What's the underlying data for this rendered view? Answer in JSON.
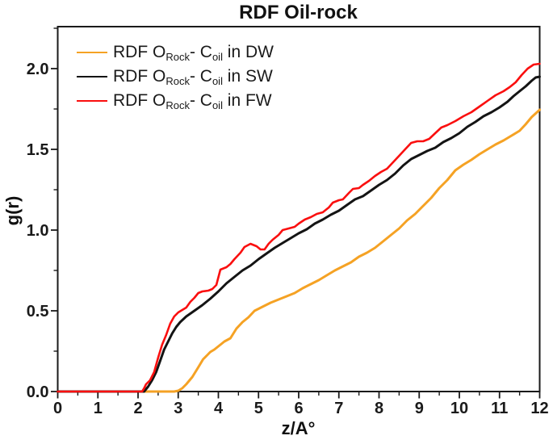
{
  "title": "RDF Oil-rock",
  "legend": {
    "items": [
      {
        "series_id": "dw",
        "pre": "RDF O",
        "sub1": "Rock",
        "mid": "- C",
        "sub2": "oil",
        "post": " in DW"
      },
      {
        "series_id": "sw",
        "pre": "RDF O",
        "sub1": "Rock",
        "mid": "- C",
        "sub2": "oil",
        "post": " in SW"
      },
      {
        "series_id": "fw",
        "pre": "RDF O",
        "sub1": "Rock",
        "mid": "- C",
        "sub2": "oil",
        "post": " in FW"
      }
    ]
  },
  "chart_data": {
    "type": "line",
    "title": "RDF Oil-rock",
    "xlabel": "z/A°",
    "ylabel": "g(r)",
    "xlim": [
      0,
      12
    ],
    "ylim": [
      0,
      2.26
    ],
    "grid": false,
    "legend_position": "top-left",
    "axis_color": "#1a1a1a",
    "x_major_ticks": [
      0,
      1,
      2,
      3,
      4,
      5,
      6,
      7,
      8,
      9,
      10,
      11,
      12
    ],
    "x_tick_labels": [
      "0",
      "1",
      "2",
      "3",
      "4",
      "5",
      "6",
      "7",
      "8",
      "9",
      "10",
      "11",
      "12"
    ],
    "x_minor_step": 0.5,
    "y_major_ticks": [
      0,
      0.5,
      1,
      1.5,
      2
    ],
    "y_tick_labels": [
      "0.0",
      "0.5",
      "1.0",
      "1.5",
      "2.0"
    ],
    "y_minor_step": 0.25,
    "series": [
      {
        "id": "dw",
        "name": "RDF O_Rock - C_oil in DW",
        "color": "#F5A224",
        "width": 3,
        "points": [
          [
            0,
            0
          ],
          [
            0.5,
            0
          ],
          [
            1,
            0
          ],
          [
            1.5,
            0
          ],
          [
            2,
            0
          ],
          [
            2.5,
            0
          ],
          [
            2.9,
            0
          ],
          [
            3.0,
            0.005
          ],
          [
            3.1,
            0.02
          ],
          [
            3.2,
            0.045
          ],
          [
            3.35,
            0.09
          ],
          [
            3.5,
            0.15
          ],
          [
            3.62,
            0.2
          ],
          [
            3.72,
            0.225
          ],
          [
            3.8,
            0.245
          ],
          [
            3.9,
            0.26
          ],
          [
            4.0,
            0.28
          ],
          [
            4.15,
            0.31
          ],
          [
            4.3,
            0.33
          ],
          [
            4.45,
            0.39
          ],
          [
            4.6,
            0.43
          ],
          [
            4.75,
            0.46
          ],
          [
            4.9,
            0.5
          ],
          [
            5.1,
            0.525
          ],
          [
            5.3,
            0.55
          ],
          [
            5.5,
            0.57
          ],
          [
            5.7,
            0.59
          ],
          [
            5.9,
            0.61
          ],
          [
            6.1,
            0.64
          ],
          [
            6.3,
            0.665
          ],
          [
            6.5,
            0.69
          ],
          [
            6.7,
            0.72
          ],
          [
            6.9,
            0.75
          ],
          [
            7.1,
            0.775
          ],
          [
            7.3,
            0.8
          ],
          [
            7.5,
            0.835
          ],
          [
            7.7,
            0.86
          ],
          [
            7.9,
            0.89
          ],
          [
            8.1,
            0.93
          ],
          [
            8.3,
            0.97
          ],
          [
            8.5,
            1.01
          ],
          [
            8.7,
            1.06
          ],
          [
            8.9,
            1.1
          ],
          [
            9.1,
            1.15
          ],
          [
            9.3,
            1.2
          ],
          [
            9.5,
            1.26
          ],
          [
            9.7,
            1.31
          ],
          [
            9.9,
            1.37
          ],
          [
            10.1,
            1.405
          ],
          [
            10.3,
            1.435
          ],
          [
            10.5,
            1.47
          ],
          [
            10.7,
            1.5
          ],
          [
            10.9,
            1.53
          ],
          [
            11.1,
            1.555
          ],
          [
            11.3,
            1.585
          ],
          [
            11.5,
            1.615
          ],
          [
            11.65,
            1.655
          ],
          [
            11.8,
            1.7
          ],
          [
            12,
            1.745
          ]
        ]
      },
      {
        "id": "sw",
        "name": "RDF O_Rock - C_oil in SW",
        "color": "#141414",
        "width": 3,
        "points": [
          [
            0,
            0
          ],
          [
            0.5,
            0
          ],
          [
            1,
            0
          ],
          [
            1.5,
            0
          ],
          [
            2,
            0
          ],
          [
            2.15,
            0
          ],
          [
            2.25,
            0.03
          ],
          [
            2.35,
            0.07
          ],
          [
            2.45,
            0.12
          ],
          [
            2.55,
            0.19
          ],
          [
            2.65,
            0.26
          ],
          [
            2.75,
            0.31
          ],
          [
            2.85,
            0.36
          ],
          [
            2.95,
            0.4
          ],
          [
            3.05,
            0.43
          ],
          [
            3.2,
            0.465
          ],
          [
            3.4,
            0.5
          ],
          [
            3.6,
            0.535
          ],
          [
            3.8,
            0.575
          ],
          [
            4.0,
            0.62
          ],
          [
            4.2,
            0.67
          ],
          [
            4.4,
            0.71
          ],
          [
            4.6,
            0.75
          ],
          [
            4.8,
            0.78
          ],
          [
            5.0,
            0.82
          ],
          [
            5.2,
            0.855
          ],
          [
            5.4,
            0.89
          ],
          [
            5.6,
            0.92
          ],
          [
            5.8,
            0.95
          ],
          [
            6.0,
            0.98
          ],
          [
            6.2,
            1.005
          ],
          [
            6.4,
            1.04
          ],
          [
            6.6,
            1.065
          ],
          [
            6.8,
            1.095
          ],
          [
            7.0,
            1.12
          ],
          [
            7.2,
            1.155
          ],
          [
            7.4,
            1.19
          ],
          [
            7.6,
            1.21
          ],
          [
            7.8,
            1.245
          ],
          [
            8.0,
            1.28
          ],
          [
            8.2,
            1.31
          ],
          [
            8.4,
            1.35
          ],
          [
            8.6,
            1.4
          ],
          [
            8.8,
            1.44
          ],
          [
            9.0,
            1.465
          ],
          [
            9.2,
            1.49
          ],
          [
            9.4,
            1.51
          ],
          [
            9.6,
            1.545
          ],
          [
            9.8,
            1.57
          ],
          [
            10.0,
            1.6
          ],
          [
            10.2,
            1.64
          ],
          [
            10.4,
            1.67
          ],
          [
            10.6,
            1.705
          ],
          [
            10.8,
            1.73
          ],
          [
            11.0,
            1.76
          ],
          [
            11.2,
            1.795
          ],
          [
            11.35,
            1.83
          ],
          [
            11.5,
            1.86
          ],
          [
            11.65,
            1.89
          ],
          [
            11.8,
            1.925
          ],
          [
            11.9,
            1.945
          ],
          [
            12,
            1.95
          ]
        ]
      },
      {
        "id": "fw",
        "name": "RDF O_Rock - C_oil in FW",
        "color": "#FA0F0F",
        "width": 2.6,
        "points": [
          [
            0,
            0
          ],
          [
            0.5,
            0
          ],
          [
            1,
            0
          ],
          [
            1.5,
            0
          ],
          [
            2,
            0
          ],
          [
            2.1,
            0
          ],
          [
            2.15,
            0.02
          ],
          [
            2.2,
            0.045
          ],
          [
            2.3,
            0.07
          ],
          [
            2.4,
            0.12
          ],
          [
            2.5,
            0.21
          ],
          [
            2.6,
            0.29
          ],
          [
            2.7,
            0.35
          ],
          [
            2.8,
            0.42
          ],
          [
            2.9,
            0.465
          ],
          [
            3.0,
            0.49
          ],
          [
            3.1,
            0.505
          ],
          [
            3.2,
            0.52
          ],
          [
            3.3,
            0.555
          ],
          [
            3.4,
            0.58
          ],
          [
            3.5,
            0.61
          ],
          [
            3.6,
            0.62
          ],
          [
            3.75,
            0.625
          ],
          [
            3.85,
            0.635
          ],
          [
            3.95,
            0.66
          ],
          [
            4.05,
            0.755
          ],
          [
            4.2,
            0.77
          ],
          [
            4.3,
            0.79
          ],
          [
            4.4,
            0.82
          ],
          [
            4.55,
            0.86
          ],
          [
            4.65,
            0.895
          ],
          [
            4.8,
            0.915
          ],
          [
            4.95,
            0.9
          ],
          [
            5.05,
            0.88
          ],
          [
            5.15,
            0.88
          ],
          [
            5.25,
            0.915
          ],
          [
            5.35,
            0.94
          ],
          [
            5.5,
            0.97
          ],
          [
            5.6,
            1.0
          ],
          [
            5.75,
            1.01
          ],
          [
            5.9,
            1.02
          ],
          [
            6.0,
            1.04
          ],
          [
            6.15,
            1.065
          ],
          [
            6.3,
            1.08
          ],
          [
            6.45,
            1.1
          ],
          [
            6.6,
            1.11
          ],
          [
            6.75,
            1.14
          ],
          [
            6.85,
            1.17
          ],
          [
            7.0,
            1.185
          ],
          [
            7.1,
            1.19
          ],
          [
            7.25,
            1.23
          ],
          [
            7.35,
            1.255
          ],
          [
            7.5,
            1.26
          ],
          [
            7.6,
            1.28
          ],
          [
            7.75,
            1.305
          ],
          [
            7.9,
            1.335
          ],
          [
            8.05,
            1.36
          ],
          [
            8.2,
            1.38
          ],
          [
            8.35,
            1.42
          ],
          [
            8.5,
            1.46
          ],
          [
            8.65,
            1.5
          ],
          [
            8.8,
            1.54
          ],
          [
            8.95,
            1.55
          ],
          [
            9.1,
            1.55
          ],
          [
            9.25,
            1.565
          ],
          [
            9.4,
            1.6
          ],
          [
            9.55,
            1.635
          ],
          [
            9.7,
            1.65
          ],
          [
            9.9,
            1.675
          ],
          [
            10.1,
            1.705
          ],
          [
            10.3,
            1.73
          ],
          [
            10.5,
            1.765
          ],
          [
            10.7,
            1.8
          ],
          [
            10.9,
            1.835
          ],
          [
            11.1,
            1.86
          ],
          [
            11.25,
            1.885
          ],
          [
            11.4,
            1.915
          ],
          [
            11.55,
            1.96
          ],
          [
            11.7,
            2.0
          ],
          [
            11.85,
            2.025
          ],
          [
            12,
            2.03
          ]
        ]
      }
    ]
  }
}
